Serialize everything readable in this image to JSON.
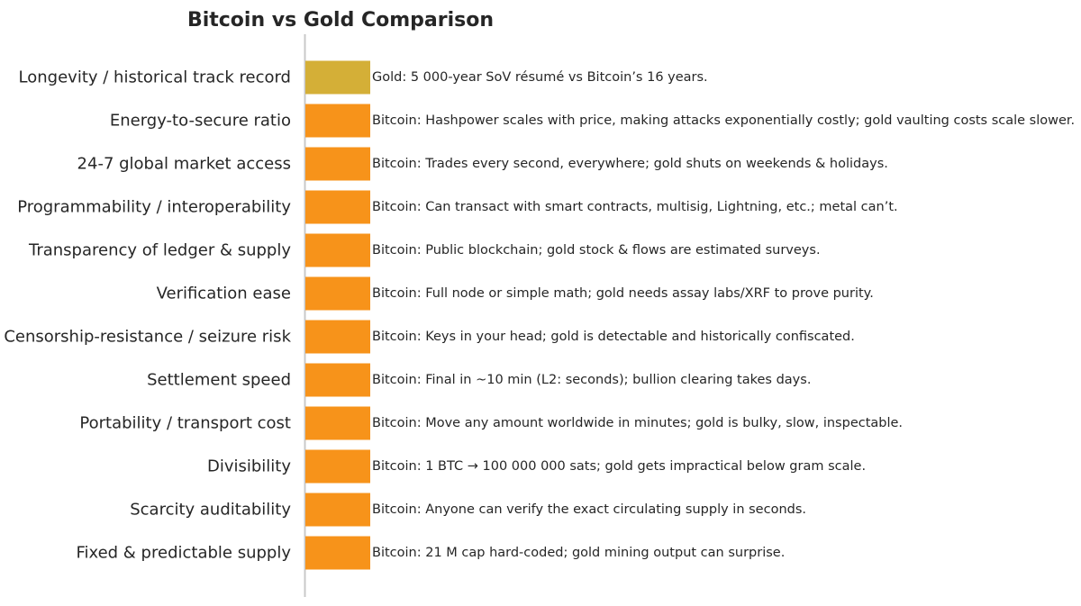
{
  "chart_data": {
    "type": "bar",
    "orientation": "horizontal",
    "title": "Bitcoin vs Gold Comparison",
    "xlabel": "",
    "ylabel": "",
    "grid": false,
    "colors": {
      "gold": "#D4AF37",
      "bitcoin": "#F7931A",
      "axis": "#c8c8c8",
      "text": "#262626"
    },
    "bars": [
      {
        "category": "Longevity / historical track record",
        "winner": "gold",
        "value": 1,
        "annotation": "Gold: 5 000-year SoV résumé vs Bitcoin’s 16 years."
      },
      {
        "category": "Energy-to-secure ratio",
        "winner": "bitcoin",
        "value": 1,
        "annotation": "Bitcoin: Hashpower scales with price, making attacks exponentially costly; gold vaulting costs scale slower."
      },
      {
        "category": "24-7 global market access",
        "winner": "bitcoin",
        "value": 1,
        "annotation": "Bitcoin: Trades every second, everywhere; gold shuts on weekends & holidays."
      },
      {
        "category": "Programmability / interoperability",
        "winner": "bitcoin",
        "value": 1,
        "annotation": "Bitcoin: Can transact with smart contracts, multisig, Lightning, etc.; metal can’t."
      },
      {
        "category": "Transparency of ledger & supply",
        "winner": "bitcoin",
        "value": 1,
        "annotation": "Bitcoin: Public blockchain; gold stock & flows are estimated surveys."
      },
      {
        "category": "Verification ease",
        "winner": "bitcoin",
        "value": 1,
        "annotation": "Bitcoin: Full node or simple math; gold needs assay labs/XRF to prove purity."
      },
      {
        "category": "Censorship-resistance / seizure risk",
        "winner": "bitcoin",
        "value": 1,
        "annotation": "Bitcoin: Keys in your head; gold is detectable and historically confiscated."
      },
      {
        "category": "Settlement speed",
        "winner": "bitcoin",
        "value": 1,
        "annotation": "Bitcoin: Final in ~10 min (L2: seconds); bullion clearing takes days."
      },
      {
        "category": "Portability / transport cost",
        "winner": "bitcoin",
        "value": 1,
        "annotation": "Bitcoin: Move any amount worldwide in minutes; gold is bulky, slow, inspectable."
      },
      {
        "category": "Divisibility",
        "winner": "bitcoin",
        "value": 1,
        "annotation": "Bitcoin: 1 BTC → 100 000 000 sats; gold gets impractical below gram scale."
      },
      {
        "category": "Scarcity auditability",
        "winner": "bitcoin",
        "value": 1,
        "annotation": "Bitcoin: Anyone can verify the exact circulating supply in seconds."
      },
      {
        "category": "Fixed & predictable supply",
        "winner": "bitcoin",
        "value": 1,
        "annotation": "Bitcoin: 21 M cap hard-coded; gold mining output can surprise."
      }
    ]
  }
}
